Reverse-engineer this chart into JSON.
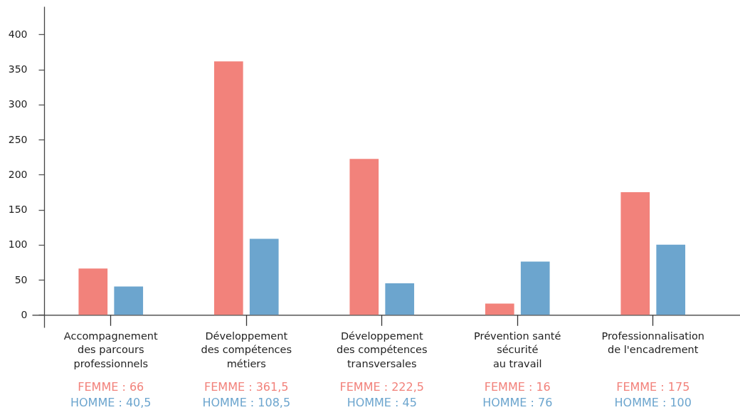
{
  "chart_data": {
    "type": "bar",
    "categories": [
      "Accompagnement\ndes parcours\nprofessionnels",
      "Développement\ndes compétences\nmétiers",
      "Développement\ndes compétences\ntransversales",
      "Prévention santé\nsécurité\nau travail",
      "Professionnalisation\nde l'encadrement"
    ],
    "series": [
      {
        "color": "#f2827b",
        "values": [
          66,
          361.5,
          222.5,
          16,
          175
        ],
        "value_labels": [
          "FEMME : 66",
          "FEMME : 361,5",
          "FEMME : 222,5",
          "FEMME : 16",
          "FEMME : 175"
        ]
      },
      {
        "color": "#6ca5ce",
        "values": [
          40.5,
          108.5,
          45,
          76,
          100
        ],
        "value_labels": [
          "HOMME : 40,5",
          "HOMME : 108,5",
          "HOMME : 45",
          "HOMME : 76",
          "HOMME : 100"
        ]
      }
    ],
    "ylim": [
      -18,
      440
    ],
    "yticks": [
      0,
      50,
      100,
      150,
      200,
      250,
      300,
      350,
      400
    ]
  }
}
